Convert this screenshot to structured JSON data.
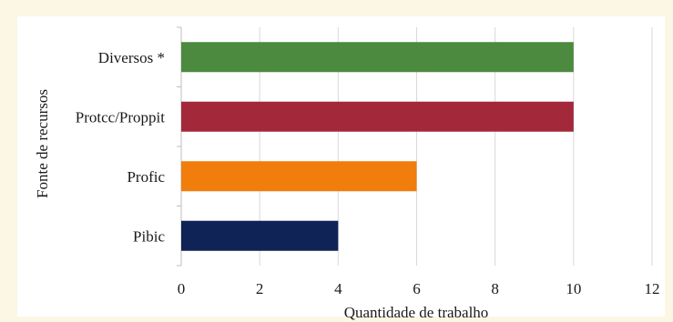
{
  "chart_data": {
    "type": "bar",
    "orientation": "horizontal",
    "title": "",
    "xlabel": "Quantidade de trabalho",
    "ylabel": "Fonte de recursos",
    "xlim": [
      0,
      12
    ],
    "xticks": [
      0,
      2,
      4,
      6,
      8,
      10,
      12
    ],
    "grid": true,
    "categories": [
      "Diversos *",
      "Protcc/Proppit",
      "Profic",
      "Pibic"
    ],
    "values": [
      10,
      10,
      6,
      4
    ],
    "colors": [
      "#4b8a3f",
      "#a3283a",
      "#f07d0c",
      "#0f2356"
    ]
  }
}
